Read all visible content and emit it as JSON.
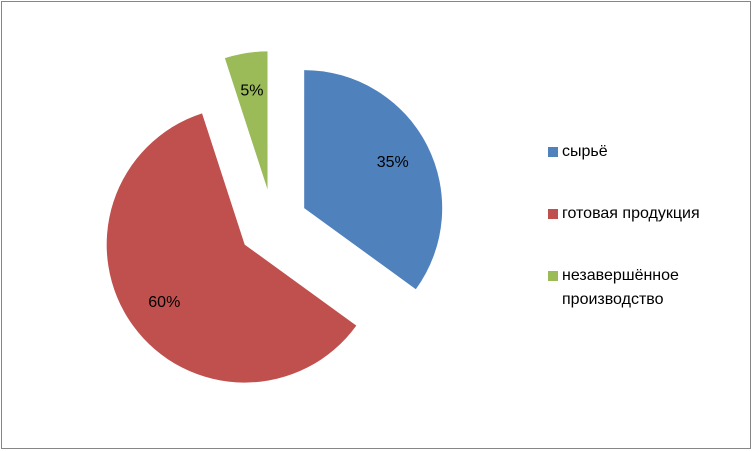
{
  "chart_data": {
    "type": "pie",
    "categories": [
      "сырьё",
      "готовая продукция",
      "незавершённое производство"
    ],
    "values": [
      35,
      60,
      5
    ],
    "value_labels": [
      "35%",
      "60%",
      "5%"
    ],
    "colors": [
      "#4f81bd",
      "#c0504d",
      "#9bbb59"
    ],
    "exploded": true,
    "legend": "right"
  }
}
